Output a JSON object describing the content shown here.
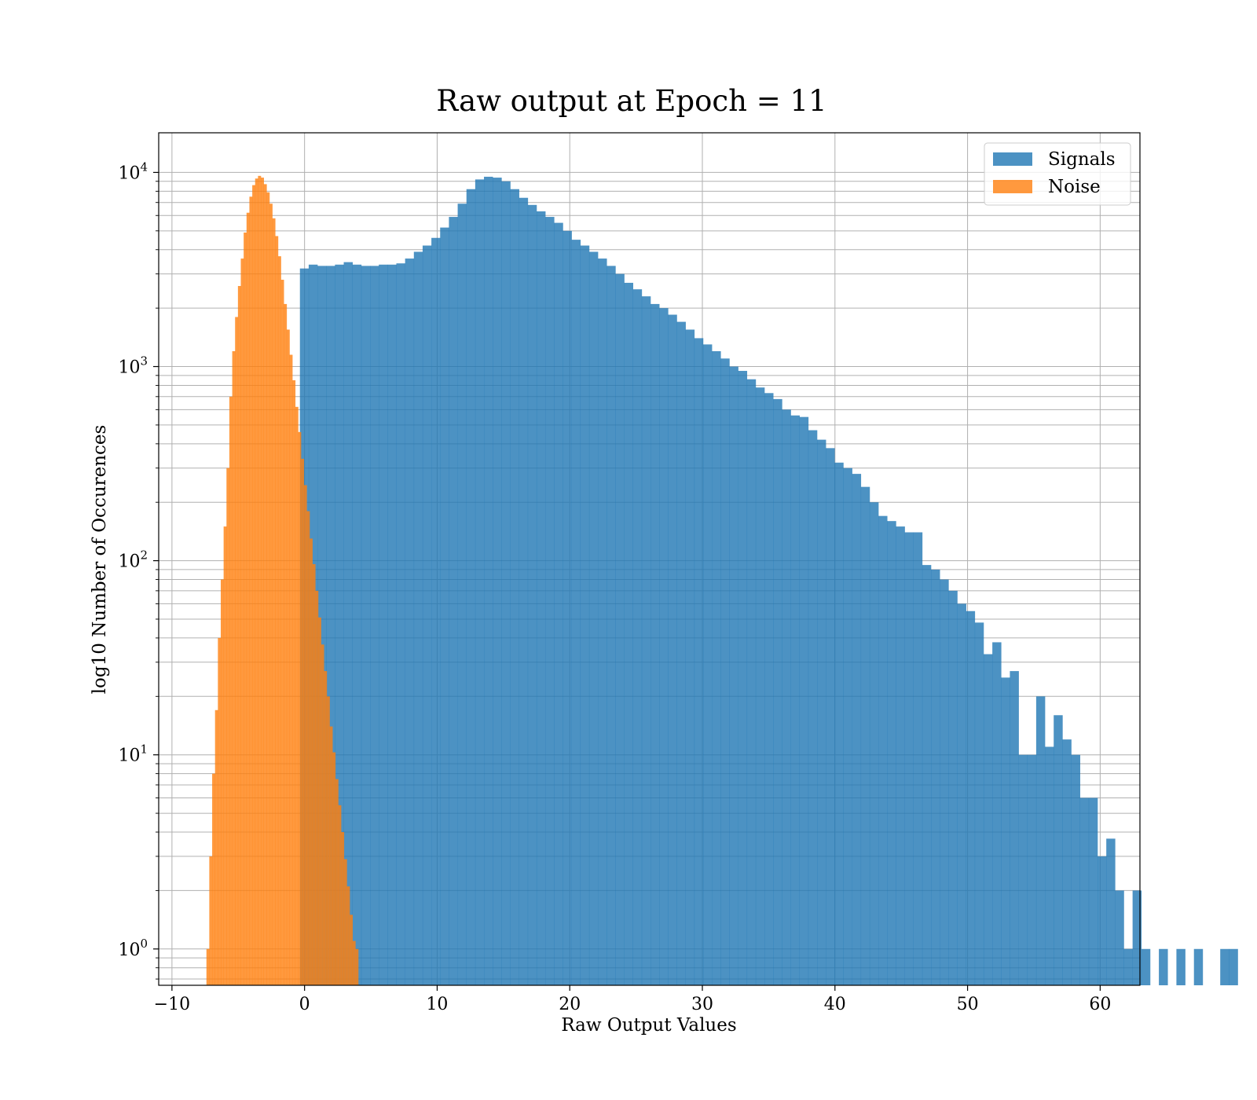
{
  "chart_data": {
    "type": "histogram",
    "title": "Raw output at Epoch = 11",
    "xlabel": "Raw Output Values",
    "ylabel": "log10 Number of Occurences",
    "xlim": [
      -11,
      63
    ],
    "ylim": [
      0.65,
      16000
    ],
    "yscale": "log",
    "grid": true,
    "legend_position": "top-right",
    "x_ticks": [
      {
        "value": -10,
        "label": "−10"
      },
      {
        "value": 0,
        "label": "0"
      },
      {
        "value": 10,
        "label": "10"
      },
      {
        "value": 20,
        "label": "20"
      },
      {
        "value": 30,
        "label": "30"
      },
      {
        "value": 40,
        "label": "40"
      },
      {
        "value": 50,
        "label": "50"
      },
      {
        "value": 60,
        "label": "60"
      }
    ],
    "y_ticks": [
      {
        "value": 1,
        "base": "10",
        "exp": "0"
      },
      {
        "value": 10,
        "base": "10",
        "exp": "1"
      },
      {
        "value": 100,
        "base": "10",
        "exp": "2"
      },
      {
        "value": 1000,
        "base": "10",
        "exp": "3"
      },
      {
        "value": 10000,
        "base": "10",
        "exp": "4"
      }
    ],
    "series": [
      {
        "name": "Signals",
        "color": "#1f77b4",
        "opacity": 0.8,
        "bin_start": -0.35,
        "bin_width": 0.661,
        "counts": [
          3200,
          3350,
          3300,
          3300,
          3350,
          3450,
          3350,
          3300,
          3300,
          3350,
          3350,
          3400,
          3600,
          3900,
          4200,
          4600,
          5200,
          5900,
          6900,
          8200,
          9200,
          9500,
          9400,
          9000,
          8200,
          7400,
          6800,
          6300,
          5900,
          5500,
          5000,
          4500,
          4200,
          3900,
          3600,
          3300,
          3000,
          2700,
          2500,
          2300,
          2100,
          2000,
          1850,
          1700,
          1550,
          1400,
          1300,
          1200,
          1100,
          1000,
          950,
          860,
          780,
          730,
          680,
          600,
          560,
          550,
          470,
          420,
          380,
          320,
          300,
          280,
          240,
          200,
          170,
          160,
          150,
          140,
          140,
          95,
          90,
          80,
          70,
          60,
          55,
          48,
          33,
          38,
          25,
          27,
          10,
          10,
          20,
          11,
          16,
          12,
          10,
          6,
          6,
          3,
          3.7,
          2,
          1,
          2,
          1,
          0,
          1,
          0,
          1,
          0,
          1,
          0,
          0,
          1,
          1
        ]
      },
      {
        "name": "Noise",
        "color": "#ff7f0e",
        "opacity": 0.8,
        "bin_start": -7.4,
        "bin_width": 0.216,
        "counts": [
          1,
          3,
          8,
          17,
          40,
          80,
          150,
          300,
          700,
          1200,
          1800,
          2600,
          3600,
          4900,
          6200,
          7500,
          8600,
          9300,
          9600,
          9400,
          8700,
          7900,
          6900,
          5800,
          4700,
          3700,
          2800,
          2100,
          1550,
          1150,
          850,
          620,
          460,
          335,
          245,
          180,
          130,
          96,
          70,
          51,
          37,
          27,
          20,
          14,
          10.3,
          7.5,
          5.5,
          4,
          2.9,
          2.1,
          1.5,
          1.1,
          1
        ]
      }
    ]
  }
}
